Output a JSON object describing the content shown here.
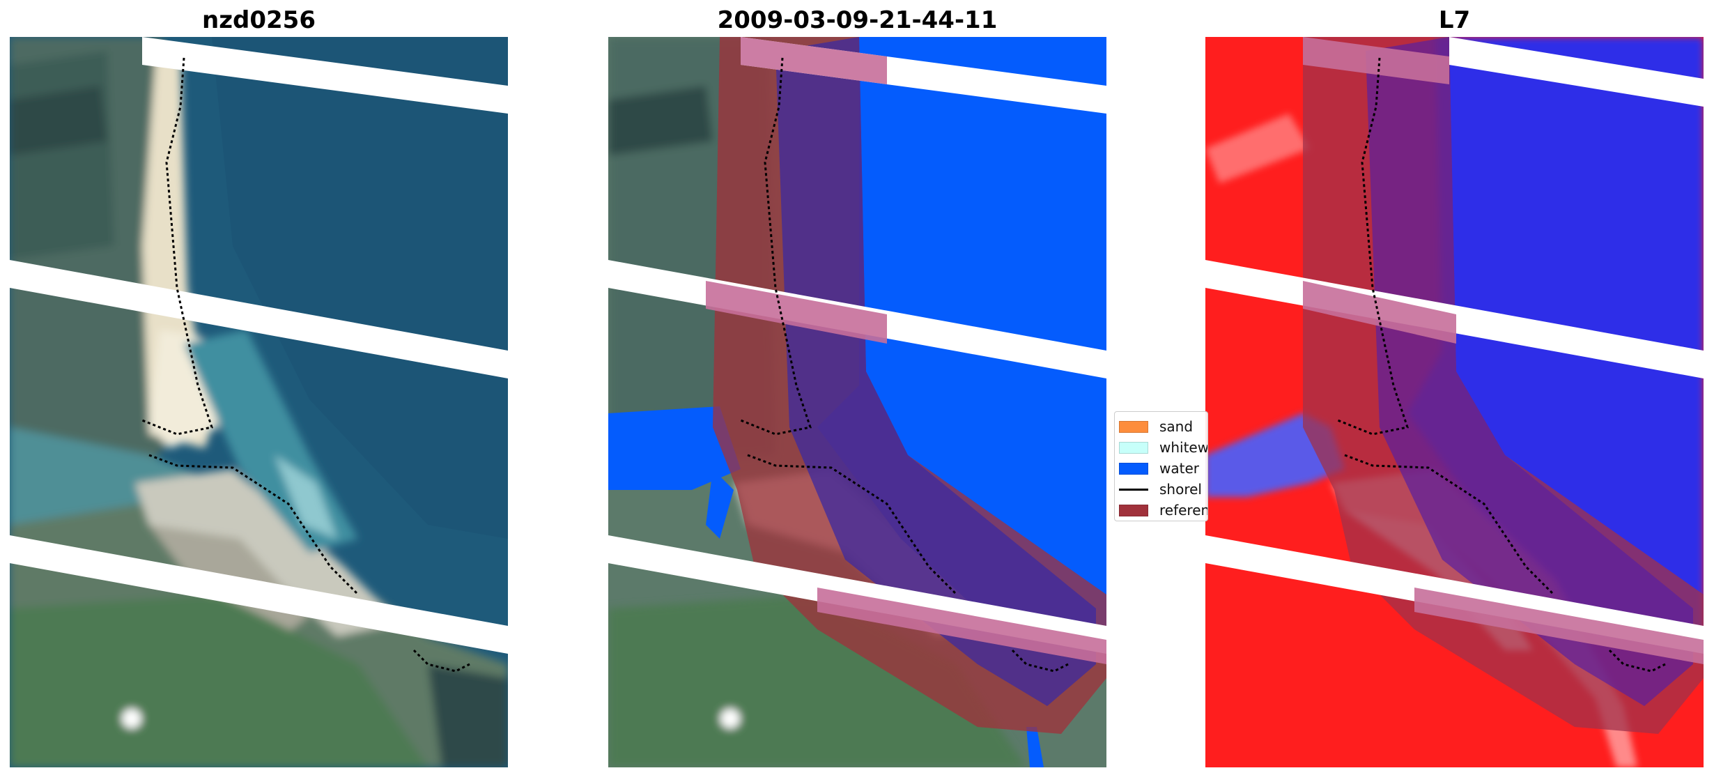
{
  "panels": [
    {
      "title": "nzd0256"
    },
    {
      "title": "2009-03-09-21-44-11"
    },
    {
      "title": "L7"
    }
  ],
  "legend": {
    "items": [
      {
        "label": "sand",
        "color": "#fd8d3c",
        "kind": "patch"
      },
      {
        "label": "whitew",
        "color": "#c7fffa",
        "kind": "patch"
      },
      {
        "label": "water",
        "color": "#045cfd",
        "kind": "patch"
      },
      {
        "label": "shorel",
        "color": "#000000",
        "kind": "line"
      },
      {
        "label": "referen",
        "color": "#a0313b",
        "kind": "patch"
      }
    ]
  }
}
